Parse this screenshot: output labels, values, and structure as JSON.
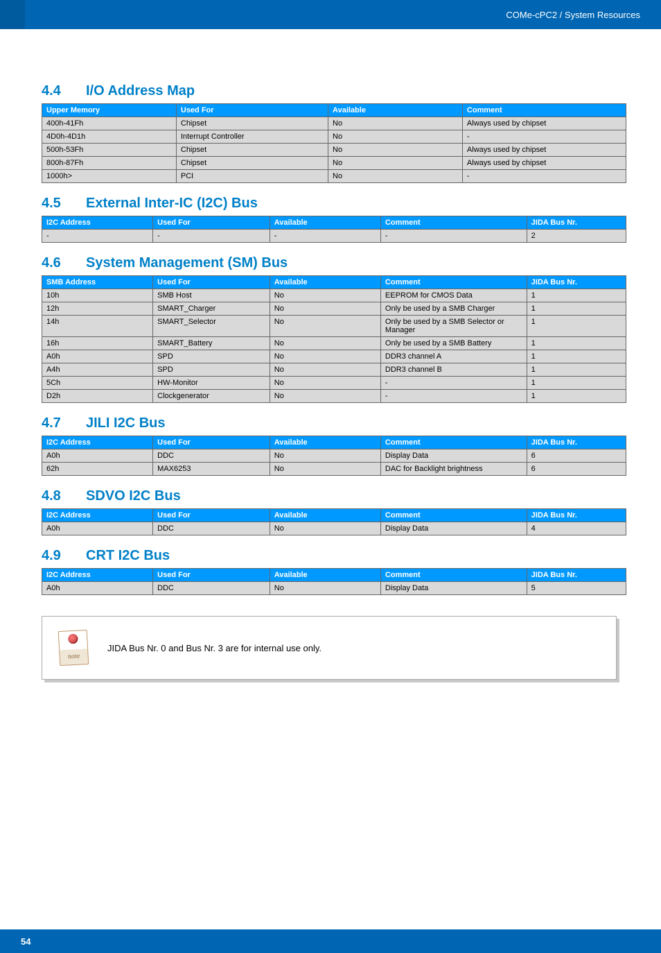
{
  "header": {
    "breadcrumb": "COMe-cPC2 / System Resources"
  },
  "sections": {
    "s44": {
      "num": "4.4",
      "title": "I/O Address Map"
    },
    "s45": {
      "num": "4.5",
      "title": "External Inter-IC (I2C) Bus"
    },
    "s46": {
      "num": "4.6",
      "title": "System Management (SM) Bus"
    },
    "s47": {
      "num": "4.7",
      "title": "JILI I2C Bus"
    },
    "s48": {
      "num": "4.8",
      "title": "SDVO I2C Bus"
    },
    "s49": {
      "num": "4.9",
      "title": "CRT I2C Bus"
    }
  },
  "tables": {
    "io_map": {
      "columns": [
        "Upper Memory",
        "Used For",
        "Available",
        "Comment"
      ],
      "rows": [
        [
          "400h-41Fh",
          "Chipset",
          "No",
          "Always used by chipset"
        ],
        [
          "4D0h-4D1h",
          "Interrupt Controller",
          "No",
          "-"
        ],
        [
          "500h-53Fh",
          "Chipset",
          "No",
          "Always used by chipset"
        ],
        [
          "800h-87Fh",
          "Chipset",
          "No",
          "Always used by chipset"
        ],
        [
          "1000h>",
          "PCI",
          "No",
          "-"
        ]
      ]
    },
    "ext_i2c": {
      "columns": [
        "I2C Address",
        "Used For",
        "Available",
        "Comment",
        "JIDA Bus Nr."
      ],
      "rows": [
        [
          "-",
          "-",
          "-",
          "-",
          "2"
        ]
      ]
    },
    "sm_bus": {
      "columns": [
        "SMB Address",
        "Used For",
        "Available",
        "Comment",
        "JIDA Bus Nr."
      ],
      "rows": [
        [
          "10h",
          "SMB Host",
          "No",
          "EEPROM for CMOS Data",
          "1"
        ],
        [
          "12h",
          "SMART_Charger",
          "No",
          "Only be used by a SMB Charger",
          "1"
        ],
        [
          "14h",
          "SMART_Selector",
          "No",
          "Only be used by a SMB Selector or Manager",
          "1"
        ],
        [
          "16h",
          "SMART_Battery",
          "No",
          "Only be used by a SMB Battery",
          "1"
        ],
        [
          "A0h",
          "SPD",
          "No",
          "DDR3 channel A",
          "1"
        ],
        [
          "A4h",
          "SPD",
          "No",
          "DDR3 channel B",
          "1"
        ],
        [
          "5Ch",
          "HW-Monitor",
          "No",
          "-",
          "1"
        ],
        [
          "D2h",
          "Clockgenerator",
          "No",
          "-",
          "1"
        ]
      ]
    },
    "jili": {
      "columns": [
        "I2C Address",
        "Used For",
        "Available",
        "Comment",
        "JIDA Bus Nr."
      ],
      "rows": [
        [
          "A0h",
          "DDC",
          "No",
          "Display Data",
          "6"
        ],
        [
          "62h",
          "MAX6253",
          "No",
          "DAC for Backlight brightness",
          "6"
        ]
      ]
    },
    "sdvo": {
      "columns": [
        "I2C Address",
        "Used For",
        "Available",
        "Comment",
        "JIDA Bus Nr."
      ],
      "rows": [
        [
          "A0h",
          "DDC",
          "No",
          "Display Data",
          "4"
        ]
      ]
    },
    "crt": {
      "columns": [
        "I2C Address",
        "Used For",
        "Available",
        "Comment",
        "JIDA Bus Nr."
      ],
      "rows": [
        [
          "A0h",
          "DDC",
          "No",
          "Display Data",
          "5"
        ]
      ]
    }
  },
  "note": {
    "text": "JIDA Bus Nr. 0 and Bus Nr. 3 are for internal use only."
  },
  "footer": {
    "page": "54"
  },
  "style": {
    "header_bg_color": "#0066b3",
    "table_header_color": "#0099ff",
    "heading_color": "#0080c8",
    "row_bg_color": "#d9d9d9",
    "border_color": "#666666",
    "heading_fontsize_pt": 15,
    "table_fontsize_pt": 8,
    "col_widths_4": [
      "23%",
      "26%",
      "23%",
      "28%"
    ],
    "col_widths_5": [
      "19%",
      "20%",
      "19%",
      "25%",
      "17%"
    ]
  }
}
